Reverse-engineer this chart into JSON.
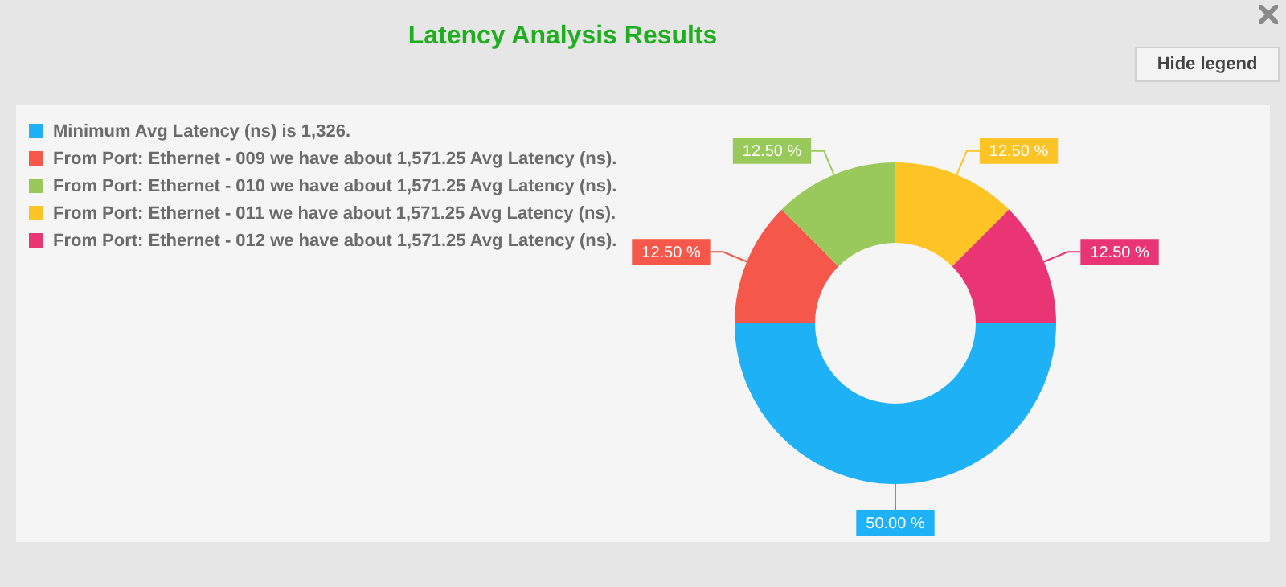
{
  "chart_data": {
    "type": "donut",
    "title": "Latency Analysis Results",
    "categories": [
      "Minimum Avg Latency (ns) is 1,326.",
      "From Port: Ethernet - 009 we have about 1,571.25 Avg Latency (ns).",
      "From Port: Ethernet - 010 we have about 1,571.25 Avg Latency (ns).",
      "From Port: Ethernet - 011 we have about 1,571.25 Avg Latency (ns).",
      "From Port: Ethernet - 012 we have about 1,571.25 Avg Latency (ns)."
    ],
    "values": [
      50,
      12.5,
      12.5,
      12.5,
      12.5
    ],
    "value_labels": [
      "50.00 %",
      "12.50 %",
      "12.50 %",
      "12.50 %",
      "12.50 %"
    ],
    "colors": [
      "#1eb1f5",
      "#f5574a",
      "#98c95a",
      "#fec425",
      "#e93573"
    ],
    "legend": "top left",
    "annotations": [
      "Hide legend"
    ]
  }
}
